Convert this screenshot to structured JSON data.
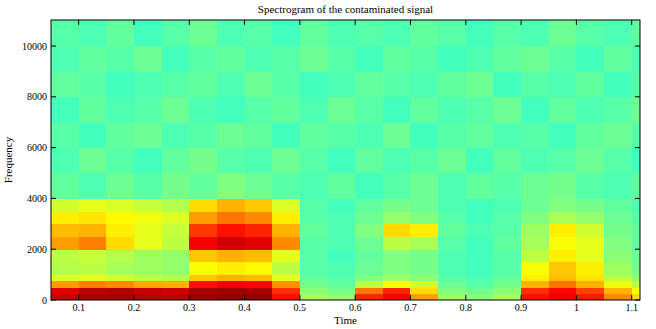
{
  "chart_data": {
    "type": "heatmap",
    "title": "Spectrogram of the contaminated signal",
    "x_label": "Time",
    "y_label": "Frequency",
    "xlim": [
      0.05,
      1.115
    ],
    "ylim": [
      0,
      11025
    ],
    "xticks": [
      0.1,
      0.2,
      0.3,
      0.4,
      0.5,
      0.6,
      0.7,
      0.8,
      0.9,
      1,
      1.1
    ],
    "yticks": [
      0,
      2000,
      4000,
      6000,
      8000,
      10000
    ],
    "x_edges": [
      0.05,
      0.1,
      0.15,
      0.2,
      0.25,
      0.3,
      0.35,
      0.4,
      0.45,
      0.5,
      0.55,
      0.6,
      0.65,
      0.7,
      0.75,
      0.8,
      0.85,
      0.9,
      0.95,
      1,
      1.05,
      1.1,
      1.115
    ],
    "y_edges": [
      0,
      250,
      500,
      750,
      1000,
      1500,
      2000,
      2500,
      3000,
      3500,
      4000,
      5000,
      6000,
      7000,
      8000,
      9000,
      10000,
      11025
    ],
    "color_range": [
      0,
      10
    ],
    "cells": [
      [
        9.3,
        9.6,
        9.6,
        9.5,
        9.4,
        9.7,
        9.8,
        9.8,
        8.6,
        5.4,
        5.2,
        8.4,
        8.8,
        7.2,
        5.3,
        5.1,
        5.4,
        8.6,
        8.9,
        8.5,
        7.4,
        6.6
      ],
      [
        9.0,
        9.4,
        9.5,
        9.3,
        9.2,
        9.6,
        9.7,
        9.6,
        8.3,
        5.1,
        4.9,
        7.6,
        8.4,
        6.6,
        5.0,
        4.8,
        5.1,
        8.3,
        8.7,
        8.1,
        7.0,
        6.2
      ],
      [
        7.2,
        7.5,
        7.4,
        7.1,
        7.0,
        8.6,
        8.9,
        8.7,
        7.3,
        4.9,
        4.7,
        5.6,
        6.2,
        5.8,
        4.8,
        4.6,
        4.9,
        7.0,
        7.6,
        7.0,
        6.1,
        5.6
      ],
      [
        5.9,
        6.0,
        5.8,
        5.6,
        5.5,
        6.8,
        7.0,
        6.9,
        6.0,
        4.7,
        4.6,
        5.0,
        5.3,
        5.1,
        4.6,
        4.5,
        4.7,
        6.4,
        6.9,
        6.5,
        5.6,
        5.2
      ],
      [
        5.5,
        5.6,
        5.4,
        5.3,
        5.2,
        6.2,
        6.4,
        6.3,
        5.6,
        4.6,
        4.5,
        4.8,
        5.0,
        4.9,
        4.5,
        4.4,
        4.6,
        6.2,
        6.8,
        6.4,
        5.3,
        4.9
      ],
      [
        5.6,
        5.7,
        5.5,
        5.3,
        5.2,
        6.8,
        7.0,
        6.9,
        6.0,
        4.6,
        4.4,
        4.7,
        5.0,
        4.9,
        4.5,
        4.4,
        4.6,
        5.6,
        6.4,
        6.0,
        5.1,
        4.8
      ],
      [
        7.2,
        7.5,
        6.6,
        6.0,
        5.6,
        8.8,
        9.2,
        9.0,
        7.4,
        4.6,
        4.5,
        4.8,
        5.6,
        5.4,
        4.6,
        4.4,
        4.7,
        5.4,
        6.2,
        6.0,
        5.0,
        4.7
      ],
      [
        6.9,
        7.0,
        6.4,
        6.0,
        5.7,
        8.2,
        8.6,
        8.4,
        7.0,
        4.7,
        4.5,
        5.0,
        6.6,
        6.4,
        4.7,
        4.5,
        4.6,
        5.3,
        6.4,
        5.8,
        4.9,
        4.7
      ],
      [
        6.4,
        6.5,
        6.3,
        6.1,
        5.9,
        7.2,
        7.6,
        7.4,
        6.4,
        4.6,
        4.5,
        4.8,
        5.2,
        5.0,
        4.6,
        4.4,
        4.6,
        5.0,
        5.4,
        5.2,
        4.8,
        4.6
      ],
      [
        5.8,
        6.0,
        5.9,
        5.7,
        5.5,
        6.6,
        7.0,
        6.8,
        5.9,
        4.6,
        4.4,
        4.7,
        4.9,
        4.8,
        4.5,
        4.4,
        4.5,
        4.8,
        5.0,
        4.9,
        4.7,
        4.5
      ],
      [
        4.7,
        4.5,
        4.8,
        4.6,
        4.9,
        4.7,
        5.0,
        4.8,
        4.6,
        4.5,
        4.7,
        4.4,
        4.6,
        4.8,
        4.5,
        4.7,
        4.6,
        4.8,
        4.9,
        4.6,
        4.5,
        4.7
      ],
      [
        4.5,
        4.8,
        4.6,
        4.4,
        4.7,
        4.9,
        4.6,
        4.5,
        4.8,
        4.6,
        4.4,
        4.7,
        4.5,
        4.6,
        4.8,
        4.4,
        4.7,
        4.5,
        4.6,
        4.8,
        4.6,
        4.4
      ],
      [
        4.6,
        4.4,
        4.7,
        4.8,
        4.5,
        4.6,
        4.8,
        4.7,
        4.4,
        4.7,
        4.6,
        4.5,
        4.8,
        4.4,
        4.6,
        4.7,
        4.5,
        4.6,
        4.4,
        4.7,
        4.8,
        4.6
      ],
      [
        4.4,
        4.7,
        4.5,
        4.6,
        4.8,
        4.5,
        4.4,
        4.6,
        4.7,
        4.5,
        4.8,
        4.6,
        4.4,
        4.7,
        4.5,
        4.6,
        4.8,
        4.4,
        4.7,
        4.5,
        4.6,
        4.8
      ],
      [
        4.7,
        4.6,
        4.4,
        4.5,
        4.6,
        4.7,
        4.5,
        4.8,
        4.6,
        4.4,
        4.5,
        4.7,
        4.6,
        4.5,
        4.7,
        4.8,
        4.4,
        4.6,
        4.5,
        4.7,
        4.4,
        4.6
      ],
      [
        4.5,
        4.7,
        4.6,
        4.8,
        4.4,
        4.6,
        4.7,
        4.5,
        4.6,
        4.8,
        4.6,
        4.4,
        4.7,
        4.6,
        4.4,
        4.5,
        4.7,
        4.8,
        4.6,
        4.4,
        4.7,
        4.5
      ],
      [
        4.6,
        4.5,
        4.7,
        4.4,
        4.6,
        4.8,
        4.5,
        4.6,
        4.4,
        4.7,
        4.5,
        4.6,
        4.5,
        4.7,
        4.6,
        4.4,
        4.6,
        4.5,
        4.8,
        4.6,
        4.5,
        4.7
      ]
    ]
  }
}
